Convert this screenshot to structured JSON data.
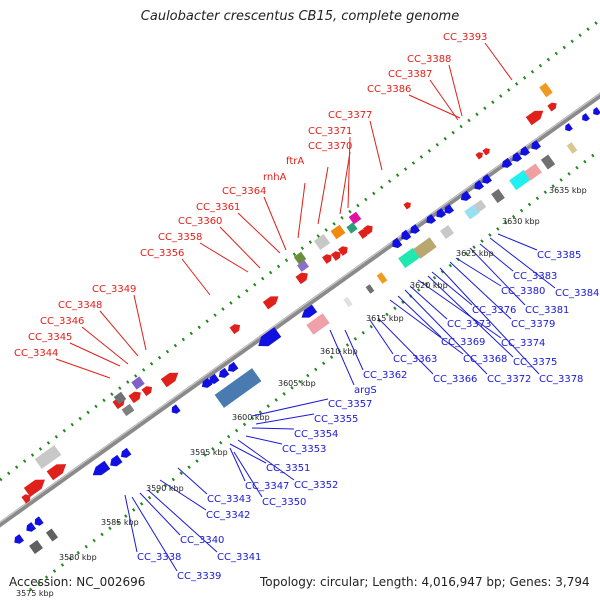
{
  "title": "Caulobacter crescentus CB15, complete genome",
  "accession": "Accession: NC_002696",
  "topology": "Topology: circular; Length: 4,016,947 bp; Genes: 3,794",
  "colors": {
    "forward_label": "#e0201b",
    "reverse_label": "#1a1ad8",
    "backbone": "#8a8a8a",
    "tick": "#1f8a1f"
  },
  "ticks": [
    "3575 kbp",
    "3580 kbp",
    "3585 kbp",
    "3590 kbp",
    "3595 kbp",
    "3600 kbp",
    "3605 kbp",
    "3610 kbp",
    "3615 kbp",
    "3620 kbp",
    "3625 kbp",
    "3630 kbp",
    "3635 kbp"
  ],
  "forward_labels": [
    "CC_3344",
    "CC_3345",
    "CC_3346",
    "CC_3348",
    "CC_3349",
    "CC_3356",
    "CC_3358",
    "CC_3360",
    "CC_3361",
    "CC_3364",
    "rnhA",
    "ftrA",
    "CC_3370",
    "CC_3371",
    "CC_3377",
    "CC_3386",
    "CC_3387",
    "CC_3388",
    "CC_3393"
  ],
  "reverse_labels": [
    "CC_3338",
    "CC_3339",
    "CC_3340",
    "CC_3341",
    "CC_3342",
    "CC_3343",
    "CC_3347",
    "CC_3350",
    "CC_3351",
    "CC_3352",
    "CC_3353",
    "CC_3354",
    "CC_3355",
    "CC_3357",
    "argS",
    "CC_3362",
    "CC_3363",
    "CC_3366",
    "CC_3368",
    "CC_3369",
    "CC_3372",
    "CC_3373",
    "CC_3374",
    "CC_3375",
    "CC_3376",
    "CC_3378",
    "CC_3379",
    "CC_3380",
    "CC_3381",
    "CC_3383",
    "CC_3384",
    "CC_3385"
  ]
}
